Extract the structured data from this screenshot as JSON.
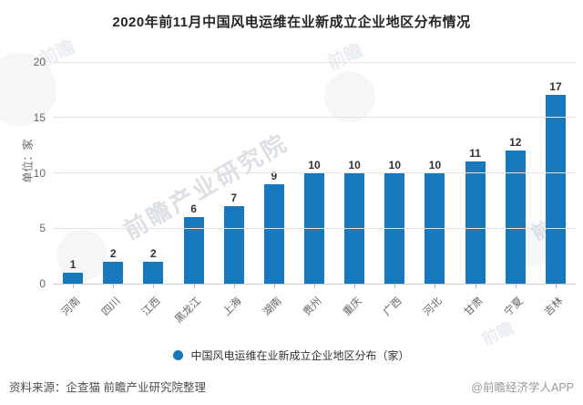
{
  "title": "2020年前11月中国风电运维在业新成立企业地区分布情况",
  "chart_data": {
    "type": "bar",
    "title": "2020年前11月中国风电运维在业新成立企业地区分布情况",
    "categories": [
      "河南",
      "四川",
      "江西",
      "黑龙江",
      "上海",
      "湖南",
      "贵州",
      "重庆",
      "广西",
      "河北",
      "甘肃",
      "宁夏",
      "吉林"
    ],
    "values": [
      1,
      2,
      2,
      6,
      7,
      9,
      10,
      10,
      10,
      10,
      11,
      12,
      17
    ],
    "xlabel": "",
    "ylabel": "单位：家",
    "ylim": [
      0,
      20
    ],
    "yticks": [
      0,
      5,
      10,
      15,
      20
    ],
    "grid": true,
    "bar_color": "#1778be",
    "value_labels": true,
    "legend": [
      "中国风电运维在业新成立企业地区分布（家）"
    ],
    "legend_position": "bottom"
  },
  "legend": {
    "label": "中国风电运维在业新成立企业地区分布（家）",
    "marker_color": "#1778be"
  },
  "footer": {
    "source": "资料来源：企查猫 前瞻产业研究院整理",
    "credit": "@前瞻经济学人APP"
  },
  "watermarks": [
    {
      "text": "前瞻"
    },
    {
      "text": "前瞻"
    },
    {
      "text": "前瞻产业研究院"
    },
    {
      "text": "前瞻"
    },
    {
      "text": "前瞻"
    }
  ]
}
